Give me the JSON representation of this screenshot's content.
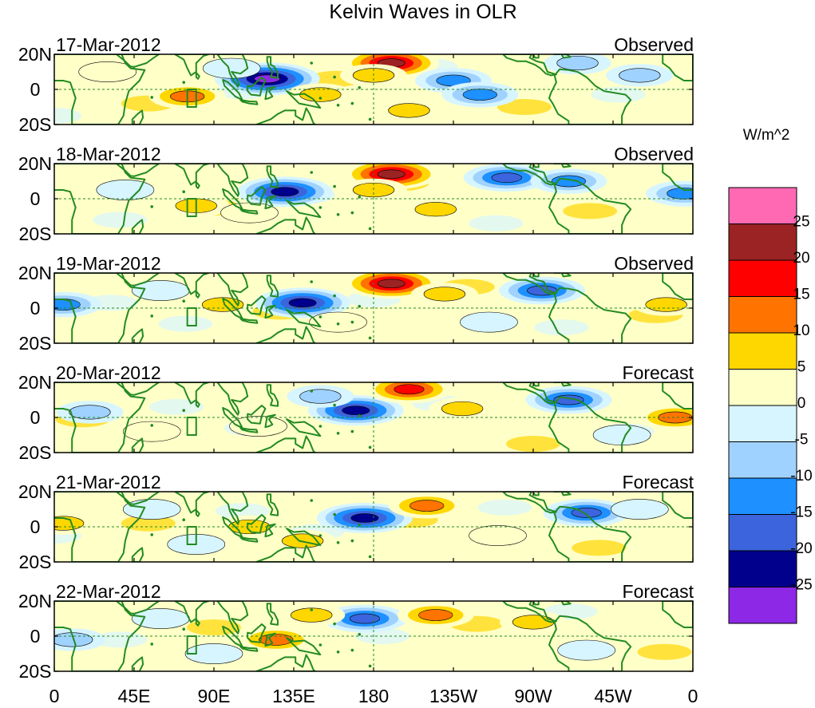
{
  "chart_data": {
    "type": "heatmap",
    "title": "Kelvin Waves in OLR",
    "units": "W/m^2",
    "x_ticks": [
      "0",
      "45E",
      "90E",
      "135E",
      "180",
      "135W",
      "90W",
      "45W",
      "0"
    ],
    "y_ticks": [
      "20N",
      "0",
      "20S"
    ],
    "colorbar_labels": [
      "25",
      "20",
      "15",
      "10",
      "5",
      "0",
      "-5",
      "-10",
      "-15",
      "-20",
      "-25"
    ],
    "colorbar_colors": [
      "#ff69b4",
      "#9b2323",
      "#ff0000",
      "#ff7300",
      "#ffd700",
      "#ffffc8",
      "#d7f5ff",
      "#a0d2ff",
      "#1e90ff",
      "#3c64dc",
      "#00008c",
      "#8c28e6"
    ],
    "panels": [
      {
        "date": "17-Mar-2012",
        "status": "Observed",
        "features": [
          {
            "lon": 120,
            "lat": 6,
            "v": -30
          },
          {
            "lon": 190,
            "lat": 15,
            "v": 26
          },
          {
            "lon": 75,
            "lat": -4,
            "v": 18
          },
          {
            "lon": 225,
            "lat": 5,
            "v": -18
          },
          {
            "lon": 240,
            "lat": -3,
            "v": -15
          },
          {
            "lon": 180,
            "lat": 8,
            "v": 14
          },
          {
            "lon": 150,
            "lat": -3,
            "v": 12
          },
          {
            "lon": 30,
            "lat": 10,
            "v": 8
          },
          {
            "lon": 295,
            "lat": 15,
            "v": -14
          },
          {
            "lon": 330,
            "lat": 8,
            "v": -10
          },
          {
            "lon": 200,
            "lat": -12,
            "v": 10
          },
          {
            "lon": 100,
            "lat": 12,
            "v": -8
          }
        ]
      },
      {
        "date": "18-Mar-2012",
        "status": "Observed",
        "features": [
          {
            "lon": 130,
            "lat": 4,
            "v": -28
          },
          {
            "lon": 190,
            "lat": 14,
            "v": 25
          },
          {
            "lon": 255,
            "lat": 12,
            "v": -20
          },
          {
            "lon": 290,
            "lat": 10,
            "v": -16
          },
          {
            "lon": 355,
            "lat": 3,
            "v": -16
          },
          {
            "lon": 180,
            "lat": 5,
            "v": 14
          },
          {
            "lon": 80,
            "lat": -4,
            "v": 12
          },
          {
            "lon": 215,
            "lat": -6,
            "v": 10
          },
          {
            "lon": 40,
            "lat": 5,
            "v": -8
          },
          {
            "lon": 110,
            "lat": -8,
            "v": 7
          }
        ]
      },
      {
        "date": "19-Mar-2012",
        "status": "Observed",
        "features": [
          {
            "lon": 140,
            "lat": 3,
            "v": -28
          },
          {
            "lon": 190,
            "lat": 14,
            "v": 26
          },
          {
            "lon": 275,
            "lat": 10,
            "v": -22
          },
          {
            "lon": 5,
            "lat": 2,
            "v": -18
          },
          {
            "lon": 345,
            "lat": 2,
            "v": 14
          },
          {
            "lon": 95,
            "lat": 2,
            "v": 12
          },
          {
            "lon": 220,
            "lat": 8,
            "v": 12
          },
          {
            "lon": 160,
            "lat": -8,
            "v": 8
          },
          {
            "lon": 60,
            "lat": 10,
            "v": -8
          },
          {
            "lon": 245,
            "lat": -8,
            "v": -8
          }
        ]
      },
      {
        "date": "20-Mar-2012",
        "status": "Forecast",
        "features": [
          {
            "lon": 170,
            "lat": 4,
            "v": -26
          },
          {
            "lon": 200,
            "lat": 16,
            "v": 22
          },
          {
            "lon": 290,
            "lat": 10,
            "v": -22
          },
          {
            "lon": 20,
            "lat": 3,
            "v": -14
          },
          {
            "lon": 350,
            "lat": 0,
            "v": 16
          },
          {
            "lon": 230,
            "lat": 5,
            "v": 10
          },
          {
            "lon": 115,
            "lat": -5,
            "v": 8
          },
          {
            "lon": 150,
            "lat": 12,
            "v": -10
          },
          {
            "lon": 55,
            "lat": -8,
            "v": 6
          },
          {
            "lon": 320,
            "lat": -10,
            "v": -6
          }
        ]
      },
      {
        "date": "21-Mar-2012",
        "status": "Forecast",
        "features": [
          {
            "lon": 175,
            "lat": 5,
            "v": -26
          },
          {
            "lon": 210,
            "lat": 12,
            "v": 18
          },
          {
            "lon": 300,
            "lat": 8,
            "v": -20
          },
          {
            "lon": 110,
            "lat": 0,
            "v": 14
          },
          {
            "lon": 5,
            "lat": 2,
            "v": 12
          },
          {
            "lon": 55,
            "lat": 10,
            "v": -8
          },
          {
            "lon": 140,
            "lat": -8,
            "v": 10
          },
          {
            "lon": 250,
            "lat": -5,
            "v": 6
          },
          {
            "lon": 80,
            "lat": -10,
            "v": -6
          },
          {
            "lon": 330,
            "lat": 10,
            "v": -6
          }
        ]
      },
      {
        "date": "22-Mar-2012",
        "status": "Forecast",
        "features": [
          {
            "lon": 175,
            "lat": 10,
            "v": -24
          },
          {
            "lon": 215,
            "lat": 12,
            "v": 18
          },
          {
            "lon": 125,
            "lat": -2,
            "v": 16
          },
          {
            "lon": 270,
            "lat": 8,
            "v": 12
          },
          {
            "lon": 10,
            "lat": -2,
            "v": -10
          },
          {
            "lon": 60,
            "lat": 10,
            "v": -8
          },
          {
            "lon": 145,
            "lat": 12,
            "v": 10
          },
          {
            "lon": 300,
            "lat": -8,
            "v": -8
          },
          {
            "lon": 90,
            "lat": -10,
            "v": -6
          }
        ]
      }
    ]
  }
}
